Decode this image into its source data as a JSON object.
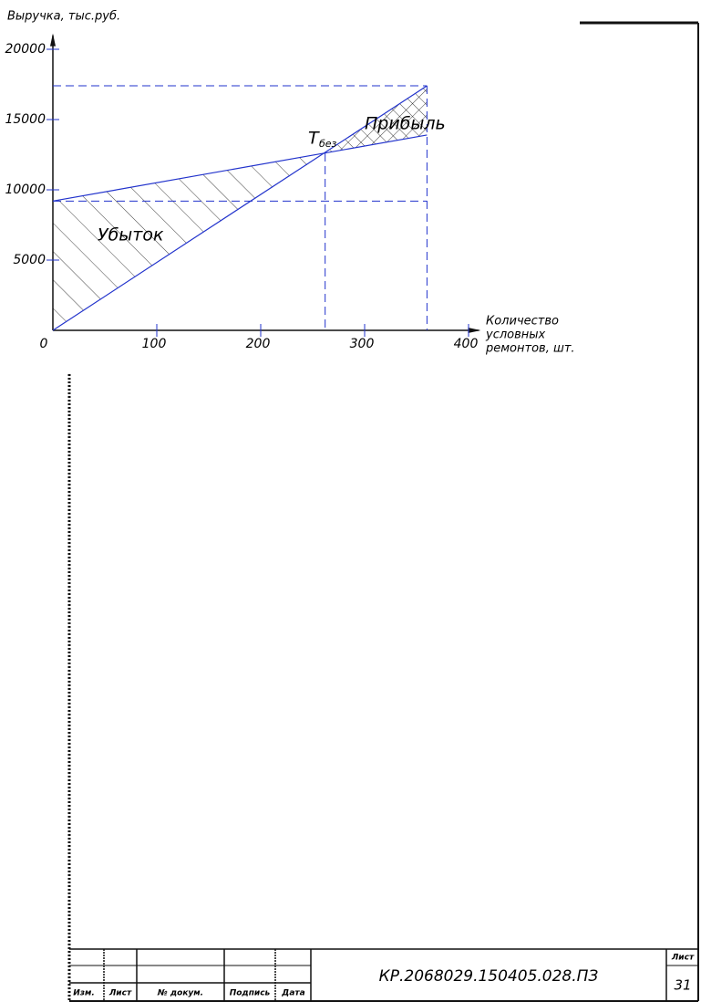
{
  "chart_data": {
    "type": "line",
    "y_label": "Выручка, тыс.руб.",
    "x_label": [
      "Количество",
      "условных",
      "ремонтов, шт."
    ],
    "x": [
      0,
      360
    ],
    "series": [
      {
        "color": "#2233cc",
        "values": [
          0,
          17400
        ]
      },
      {
        "color": "#2233cc",
        "values": [
          9200,
          13900
        ]
      }
    ],
    "breakeven": {
      "x": 262,
      "y": 12600
    },
    "annotations": {
      "loss": "Убыток",
      "profit": "Прибыль",
      "point": "Т",
      "point_sub": "без"
    },
    "xlim": [
      0,
      410
    ],
    "ylim": [
      0,
      21000
    ],
    "xticks": [
      0,
      100,
      200,
      300,
      400
    ],
    "yticks": [
      5000,
      10000,
      15000,
      20000
    ]
  },
  "stamp": {
    "headers": [
      "Изм.",
      "Лист",
      "№ докум.",
      "Подпись",
      "Дата"
    ],
    "code": "КР.2068029.150405.028.ПЗ",
    "sheet_label": "Лист",
    "sheet": 31
  }
}
